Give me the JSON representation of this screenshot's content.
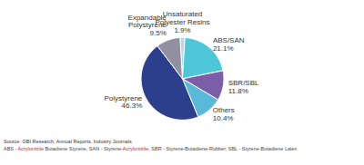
{
  "chart_data": {
    "type": "pie",
    "categories": [
      "Unsaturated\nPolyester Resins",
      "ABS/SAN",
      "SBR/SBL",
      "Others",
      "Polystyrene",
      "Expandable\nPolystyrene"
    ],
    "values": [
      1.9,
      21.1,
      11.8,
      10.4,
      46.3,
      9.5
    ],
    "value_labels": [
      "1.9%",
      "21.1%",
      "11.8%",
      "10.4%",
      "46.3%",
      "9.5%"
    ],
    "colors": [
      "#b8d8e8",
      "#4ec8d8",
      "#7b5ea7",
      "#5ab8d8",
      "#2b3f8c",
      "#9090a0"
    ],
    "data_labels": true,
    "annotations": [
      [
        {
          "text": "Source: GBI Research, Annual Reports, Industry Journals",
          "color": "#333333"
        }
      ],
      [
        {
          "text": "ABS - ",
          "color": "#444444"
        },
        {
          "text": "Acrylonitrile",
          "color": "#cc2222"
        },
        {
          "text": " Butadiene Styrene, SAN - Styrene-",
          "color": "#444444"
        },
        {
          "text": "Acrylonitrile",
          "color": "#cc2222"
        },
        {
          "text": ", SBR - Styrene-Butadiene-Rubber, SBL - Styrene-Butadiene Latex",
          "color": "#444444"
        }
      ]
    ]
  }
}
